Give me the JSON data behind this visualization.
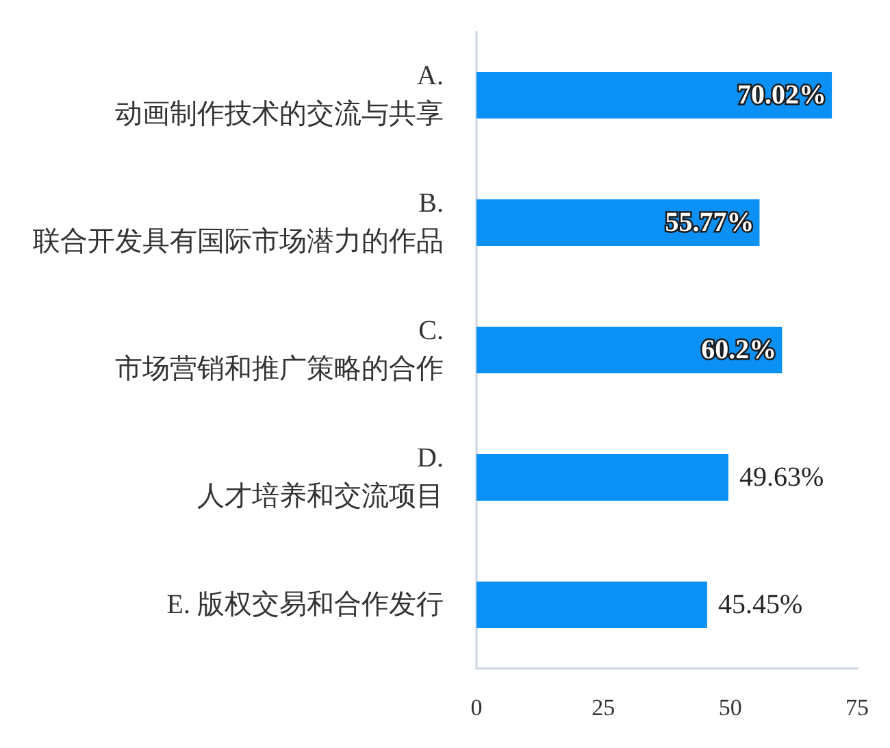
{
  "chart_data": {
    "type": "bar",
    "orientation": "horizontal",
    "categories": [
      "A.\n动画制作技术的交流与共享",
      "B.\n联合开发具有国际市场潜力的作品",
      "C.\n市场营销和推广策略的合作",
      "D.\n人才培养和交流项目",
      "E. 版权交易和合作发行"
    ],
    "values": [
      70.02,
      55.77,
      60.2,
      49.63,
      45.45
    ],
    "value_labels": [
      "70.02%",
      "55.77%",
      "60.2%",
      "49.63%",
      "45.45%"
    ],
    "color": "#0b90f5",
    "xlim": [
      0,
      75
    ],
    "xticks": [
      0,
      25,
      50,
      75
    ],
    "grid": false
  }
}
